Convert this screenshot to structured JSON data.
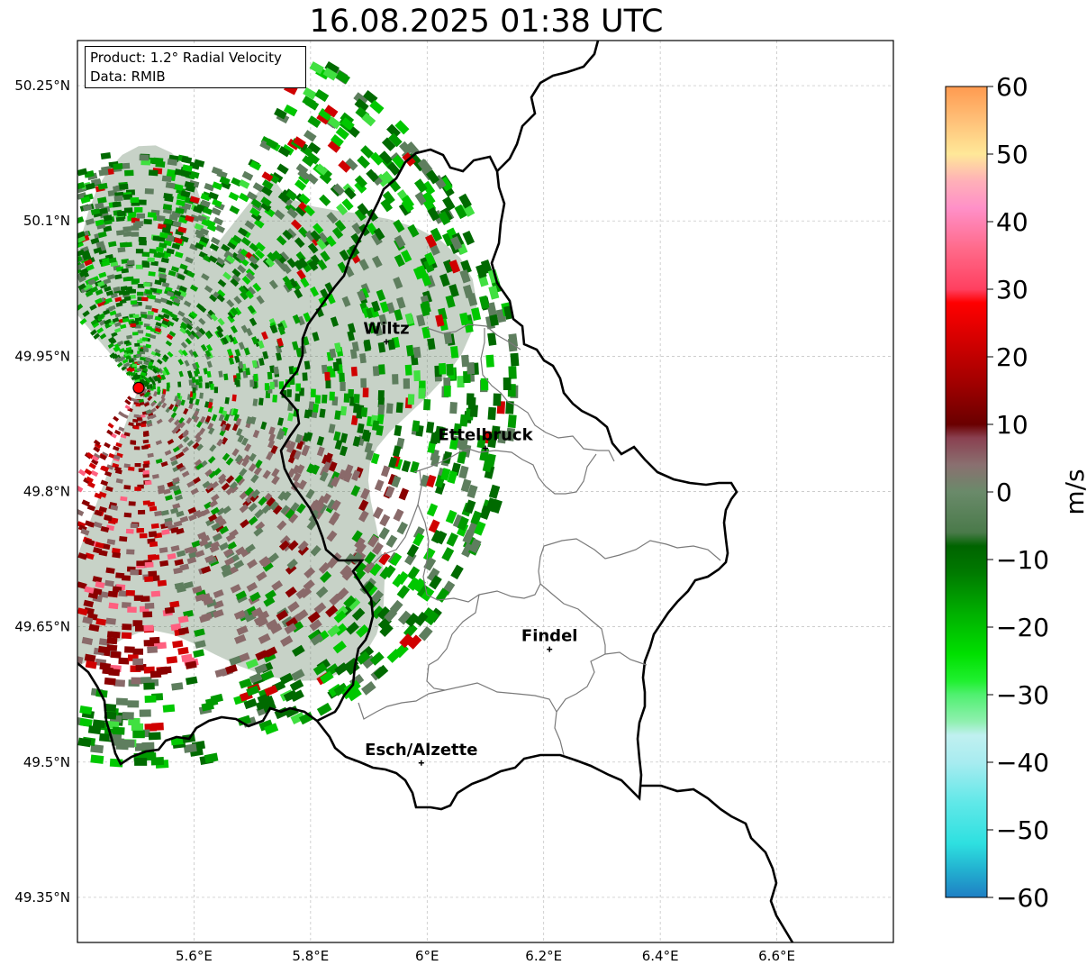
{
  "title": "16.08.2025 01:38 UTC",
  "info": {
    "product": "Product: 1.2° Radial Velocity",
    "data": "Data: RMIB"
  },
  "map": {
    "lon_range": [
      5.4,
      6.8
    ],
    "lat_range": [
      49.3,
      50.3
    ],
    "lon_ticks": [
      {
        "value": 5.6,
        "label": "5.6°E"
      },
      {
        "value": 5.8,
        "label": "5.8°E"
      },
      {
        "value": 6.0,
        "label": "6°E"
      },
      {
        "value": 6.2,
        "label": "6.2°E"
      },
      {
        "value": 6.4,
        "label": "6.4°E"
      },
      {
        "value": 6.6,
        "label": "6.6°E"
      }
    ],
    "lat_ticks": [
      {
        "value": 50.25,
        "label": "50.25°N"
      },
      {
        "value": 50.1,
        "label": "50.1°N"
      },
      {
        "value": 49.95,
        "label": "49.95°N"
      },
      {
        "value": 49.8,
        "label": "49.8°N"
      },
      {
        "value": 49.65,
        "label": "49.65°N"
      },
      {
        "value": 49.5,
        "label": "49.5°N"
      },
      {
        "value": 49.35,
        "label": "49.35°N"
      }
    ],
    "radar_site": {
      "lon": 5.505,
      "lat": 49.915,
      "color": "#ff0000"
    },
    "cities": [
      {
        "name": "Wiltz",
        "lon": 5.93,
        "lat": 49.966
      },
      {
        "name": "Ettelbruck",
        "lon": 6.1,
        "lat": 49.848
      },
      {
        "name": "Findel",
        "lon": 6.21,
        "lat": 49.625
      },
      {
        "name": "Esch/Alzette",
        "lon": 5.99,
        "lat": 49.499
      }
    ]
  },
  "colorbar": {
    "label": "m/s",
    "min": -60,
    "max": 60,
    "ticks": [
      {
        "value": 60,
        "label": "60"
      },
      {
        "value": 50,
        "label": "50"
      },
      {
        "value": 40,
        "label": "40"
      },
      {
        "value": 30,
        "label": "30"
      },
      {
        "value": 20,
        "label": "20"
      },
      {
        "value": 10,
        "label": "10"
      },
      {
        "value": 0,
        "label": "0"
      },
      {
        "value": -10,
        "label": "−10"
      },
      {
        "value": -20,
        "label": "−20"
      },
      {
        "value": -30,
        "label": "−30"
      },
      {
        "value": -40,
        "label": "−40"
      },
      {
        "value": -50,
        "label": "−50"
      },
      {
        "value": -60,
        "label": "−60"
      }
    ],
    "stops": [
      {
        "value": -60,
        "color": "#1f7fc4"
      },
      {
        "value": -56,
        "color": "#22b0d0"
      },
      {
        "value": -52,
        "color": "#2ee0e0"
      },
      {
        "value": -46,
        "color": "#60e8e8"
      },
      {
        "value": -40,
        "color": "#a8ecf0"
      },
      {
        "value": -36,
        "color": "#c0f0f0"
      },
      {
        "value": -34,
        "color": "#90f0b0"
      },
      {
        "value": -30,
        "color": "#50f070"
      },
      {
        "value": -28,
        "color": "#20f030"
      },
      {
        "value": -24,
        "color": "#00e000"
      },
      {
        "value": -18,
        "color": "#00b000"
      },
      {
        "value": -12,
        "color": "#007a00"
      },
      {
        "value": -8,
        "color": "#006400"
      },
      {
        "value": -6,
        "color": "#4a7a4a"
      },
      {
        "value": 0,
        "color": "#6a8a6a"
      },
      {
        "value": 4,
        "color": "#8a7070"
      },
      {
        "value": 8,
        "color": "#8a4050"
      },
      {
        "value": 10,
        "color": "#6a0000"
      },
      {
        "value": 16,
        "color": "#a00000"
      },
      {
        "value": 24,
        "color": "#e00000"
      },
      {
        "value": 28,
        "color": "#ff0000"
      },
      {
        "value": 30,
        "color": "#ff4060"
      },
      {
        "value": 36,
        "color": "#ff6a8a"
      },
      {
        "value": 42,
        "color": "#ff90c8"
      },
      {
        "value": 46,
        "color": "#ffb0b8"
      },
      {
        "value": 50,
        "color": "#ffe898"
      },
      {
        "value": 55,
        "color": "#ffc078"
      },
      {
        "value": 60,
        "color": "#ff9a50"
      }
    ]
  },
  "radar_colors": {
    "green_dark": "#006a00",
    "green_mid": "#009a00",
    "green_bright": "#00c800",
    "green_light": "#40e040",
    "gray_green": "#5e7e5e",
    "gray_red": "#8a6a6a",
    "red_dark": "#8a0000",
    "red": "#d00000",
    "pink": "#ff6080"
  }
}
